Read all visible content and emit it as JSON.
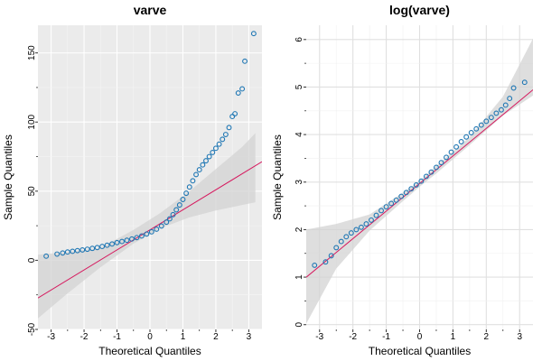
{
  "chart_data": [
    {
      "type": "scatter",
      "title": "varve",
      "xlabel": "Theoretical Quantiles",
      "ylabel": "Sample Quantiles",
      "xlim": [
        -3.4,
        3.4
      ],
      "ylim": [
        -50,
        170
      ],
      "xticks": [
        -3,
        -2,
        -1,
        0,
        1,
        2,
        3
      ],
      "xtick_labels": [
        "-3",
        "-2",
        "-1",
        "0",
        "1",
        "2",
        "3"
      ],
      "yticks": [
        -50,
        0,
        50,
        100,
        150
      ],
      "ytick_labels": [
        "-50",
        "0",
        "50",
        "100",
        "150"
      ],
      "grid": true,
      "background": "#ebebeb",
      "point_color": "#1f77b4",
      "line_color": "#d6195e",
      "band_color": "#d3d3d3",
      "reference_line": {
        "intercept": 22,
        "slope": 14.5
      },
      "confidence_band": {
        "x": [
          -3.4,
          -2.5,
          -1.5,
          -0.5,
          0.3,
          1.2,
          2.0,
          2.8,
          3.2
        ],
        "lower": [
          -42,
          -24,
          -5,
          12,
          23,
          31,
          36,
          40,
          42
        ],
        "upper": [
          4,
          6,
          9,
          22,
          34,
          50,
          66,
          82,
          92
        ]
      },
      "points": [
        [
          -3.15,
          3.0
        ],
        [
          -2.82,
          4.5
        ],
        [
          -2.65,
          5.3
        ],
        [
          -2.5,
          6.0
        ],
        [
          -2.35,
          6.5
        ],
        [
          -2.2,
          7.0
        ],
        [
          -2.05,
          7.5
        ],
        [
          -1.9,
          8.0
        ],
        [
          -1.75,
          8.6
        ],
        [
          -1.6,
          9.2
        ],
        [
          -1.45,
          10.0
        ],
        [
          -1.3,
          10.9
        ],
        [
          -1.15,
          11.8
        ],
        [
          -1.0,
          12.8
        ],
        [
          -0.85,
          13.6
        ],
        [
          -0.7,
          14.5
        ],
        [
          -0.55,
          15.4
        ],
        [
          -0.4,
          16.4
        ],
        [
          -0.25,
          17.6
        ],
        [
          -0.1,
          19.0
        ],
        [
          0.05,
          20.6
        ],
        [
          0.2,
          22.5
        ],
        [
          0.35,
          24.8
        ],
        [
          0.5,
          27.6
        ],
        [
          0.6,
          30.0
        ],
        [
          0.7,
          33.0
        ],
        [
          0.8,
          36.5
        ],
        [
          0.9,
          40.0
        ],
        [
          1.0,
          44.0
        ],
        [
          1.1,
          48.5
        ],
        [
          1.2,
          53.0
        ],
        [
          1.3,
          57.5
        ],
        [
          1.4,
          62.0
        ],
        [
          1.5,
          65.5
        ],
        [
          1.6,
          69.0
        ],
        [
          1.7,
          72.0
        ],
        [
          1.8,
          75.0
        ],
        [
          1.9,
          78.0
        ],
        [
          2.0,
          81.0
        ],
        [
          2.1,
          84.0
        ],
        [
          2.2,
          87.5
        ],
        [
          2.3,
          91.0
        ],
        [
          2.4,
          96.0
        ],
        [
          2.5,
          104.0
        ],
        [
          2.58,
          106.0
        ],
        [
          2.68,
          121.0
        ],
        [
          2.8,
          124.0
        ],
        [
          2.88,
          144.0
        ],
        [
          3.15,
          164.0
        ]
      ]
    },
    {
      "type": "scatter",
      "title": "log(varve)",
      "xlabel": "Theoretical Quantiles",
      "ylabel": "Sample Quantiles",
      "xlim": [
        -3.4,
        3.4
      ],
      "ylim": [
        -0.1,
        6.3
      ],
      "xticks": [
        -3,
        -2,
        -1,
        0,
        1,
        2,
        3
      ],
      "xtick_labels": [
        "-3",
        "-2",
        "-1",
        "0",
        "1",
        "2",
        "3"
      ],
      "yticks": [
        0,
        1,
        2,
        3,
        4,
        5,
        6
      ],
      "ytick_labels": [
        "0",
        "1",
        "2",
        "3",
        "4",
        "5",
        "6"
      ],
      "grid": true,
      "background": "#ffffff",
      "point_color": "#1f77b4",
      "line_color": "#d6195e",
      "band_color": "#d3d3d3",
      "reference_line": {
        "intercept": 2.97,
        "slope": 0.58
      },
      "confidence_band": {
        "x": [
          -3.4,
          -2.5,
          -1.5,
          -0.5,
          0.0,
          0.5,
          1.5,
          2.5,
          3.4
        ],
        "lower": [
          0.02,
          1.18,
          1.98,
          2.6,
          2.9,
          3.18,
          3.78,
          4.4,
          4.82
        ],
        "upper": [
          2.0,
          2.12,
          2.32,
          2.78,
          3.02,
          3.34,
          3.95,
          4.8,
          6.02
        ]
      },
      "points": [
        [
          -3.15,
          1.25
        ],
        [
          -2.82,
          1.32
        ],
        [
          -2.65,
          1.45
        ],
        [
          -2.5,
          1.62
        ],
        [
          -2.35,
          1.75
        ],
        [
          -2.2,
          1.85
        ],
        [
          -2.05,
          1.93
        ],
        [
          -1.9,
          2.0
        ],
        [
          -1.75,
          2.05
        ],
        [
          -1.6,
          2.12
        ],
        [
          -1.45,
          2.2
        ],
        [
          -1.3,
          2.3
        ],
        [
          -1.15,
          2.4
        ],
        [
          -1.0,
          2.48
        ],
        [
          -0.85,
          2.55
        ],
        [
          -0.7,
          2.62
        ],
        [
          -0.55,
          2.7
        ],
        [
          -0.4,
          2.78
        ],
        [
          -0.25,
          2.86
        ],
        [
          -0.1,
          2.94
        ],
        [
          0.05,
          3.02
        ],
        [
          0.2,
          3.12
        ],
        [
          0.35,
          3.21
        ],
        [
          0.5,
          3.31
        ],
        [
          0.65,
          3.41
        ],
        [
          0.8,
          3.52
        ],
        [
          0.95,
          3.63
        ],
        [
          1.1,
          3.74
        ],
        [
          1.25,
          3.85
        ],
        [
          1.4,
          3.95
        ],
        [
          1.55,
          4.04
        ],
        [
          1.7,
          4.12
        ],
        [
          1.85,
          4.2
        ],
        [
          2.0,
          4.28
        ],
        [
          2.15,
          4.36
        ],
        [
          2.3,
          4.45
        ],
        [
          2.45,
          4.52
        ],
        [
          2.58,
          4.62
        ],
        [
          2.7,
          4.76
        ],
        [
          2.82,
          4.98
        ],
        [
          3.15,
          5.1
        ]
      ]
    }
  ]
}
